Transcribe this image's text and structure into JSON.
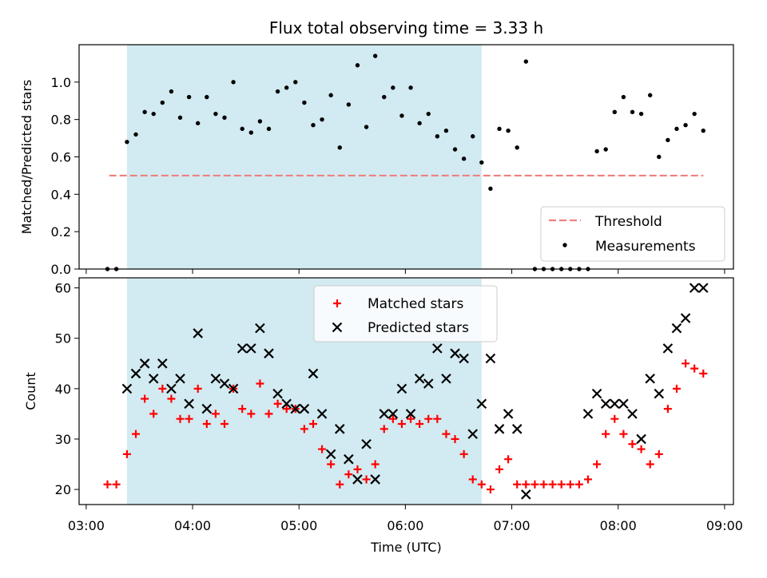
{
  "chart_data": [
    {
      "type": "scatter",
      "title": "Flux total observing time = 3.33 h",
      "xlabel": "",
      "ylabel": "Matched/Predicted stars",
      "xlim": [
        "02:56",
        "09:05"
      ],
      "ylim": [
        0,
        1.2
      ],
      "yticks": [
        "0.0",
        "0.2",
        "0.4",
        "0.6",
        "0.8",
        "1.0"
      ],
      "shaded_interval": [
        "03:23",
        "06:43"
      ],
      "shade_color": "#add8e6",
      "grid": false,
      "legend": "lower-right",
      "legend_entries": [
        "Threshold",
        "Measurements"
      ],
      "threshold": {
        "name": "Threshold",
        "y": 0.5,
        "x_start": "03:13",
        "x_end": "08:48",
        "color": "#f08080"
      },
      "series": [
        {
          "name": "Measurements",
          "color": "#000000",
          "x": [
            "03:12",
            "03:17",
            "03:23",
            "03:28",
            "03:33",
            "03:38",
            "03:43",
            "03:48",
            "03:53",
            "03:58",
            "04:03",
            "04:08",
            "04:13",
            "04:18",
            "04:23",
            "04:28",
            "04:33",
            "04:38",
            "04:43",
            "04:48",
            "04:53",
            "04:58",
            "05:03",
            "05:08",
            "05:13",
            "05:18",
            "05:23",
            "05:28",
            "05:33",
            "05:38",
            "05:43",
            "05:48",
            "05:53",
            "05:58",
            "06:03",
            "06:08",
            "06:13",
            "06:18",
            "06:23",
            "06:28",
            "06:33",
            "06:38",
            "06:43",
            "06:48",
            "06:53",
            "06:58",
            "07:03",
            "07:08",
            "07:13",
            "07:18",
            "07:23",
            "07:28",
            "07:33",
            "07:38",
            "07:43",
            "07:48",
            "07:53",
            "07:58",
            "08:03",
            "08:08",
            "08:13",
            "08:18",
            "08:23",
            "08:28",
            "08:33",
            "08:38",
            "08:43",
            "08:48"
          ],
          "y": [
            0.0,
            0.0,
            0.68,
            0.72,
            0.84,
            0.83,
            0.89,
            0.95,
            0.81,
            0.92,
            0.78,
            0.92,
            0.83,
            0.81,
            1.0,
            0.75,
            0.73,
            0.79,
            0.75,
            0.95,
            0.97,
            1.0,
            0.89,
            0.77,
            0.8,
            0.93,
            0.65,
            0.88,
            1.09,
            0.76,
            1.14,
            0.92,
            0.97,
            0.82,
            0.97,
            0.78,
            0.83,
            0.71,
            0.74,
            0.64,
            0.59,
            0.71,
            0.57,
            0.43,
            0.75,
            0.74,
            0.65,
            1.11,
            0.0,
            0.0,
            0.0,
            0.0,
            0.0,
            0.0,
            0.0,
            0.63,
            0.64,
            0.84,
            0.92,
            0.84,
            0.83,
            0.93,
            0.6,
            0.69,
            0.75,
            0.77,
            0.83,
            0.74
          ]
        }
      ]
    },
    {
      "type": "scatter",
      "title": "",
      "xlabel": "Time (UTC)",
      "ylabel": "Count",
      "xlim": [
        "02:56",
        "09:05"
      ],
      "ylim": [
        17,
        62
      ],
      "xticks": [
        "03:00",
        "04:00",
        "05:00",
        "06:00",
        "07:00",
        "08:00",
        "09:00"
      ],
      "yticks": [
        "20",
        "30",
        "40",
        "50",
        "60"
      ],
      "shaded_interval": [
        "03:23",
        "06:43"
      ],
      "shade_color": "#add8e6",
      "grid": false,
      "legend": "top-center",
      "legend_entries": [
        "Matched stars",
        "Predicted stars"
      ],
      "series": [
        {
          "name": "Matched stars",
          "color": "#ff0000",
          "marker": "+",
          "x": [
            "03:12",
            "03:17",
            "03:23",
            "03:28",
            "03:33",
            "03:38",
            "03:43",
            "03:48",
            "03:53",
            "03:58",
            "04:03",
            "04:08",
            "04:13",
            "04:18",
            "04:23",
            "04:28",
            "04:33",
            "04:38",
            "04:43",
            "04:48",
            "04:53",
            "04:58",
            "05:03",
            "05:08",
            "05:13",
            "05:18",
            "05:23",
            "05:28",
            "05:33",
            "05:38",
            "05:43",
            "05:48",
            "05:53",
            "05:58",
            "06:03",
            "06:08",
            "06:13",
            "06:18",
            "06:23",
            "06:28",
            "06:33",
            "06:38",
            "06:43",
            "06:48",
            "06:53",
            "06:58",
            "07:03",
            "07:08",
            "07:13",
            "07:18",
            "07:23",
            "07:28",
            "07:33",
            "07:38",
            "07:43",
            "07:48",
            "07:53",
            "07:58",
            "08:03",
            "08:08",
            "08:13",
            "08:18",
            "08:23",
            "08:28",
            "08:33",
            "08:38",
            "08:43",
            "08:48"
          ],
          "y": [
            21,
            21,
            27,
            31,
            38,
            35,
            40,
            38,
            34,
            34,
            40,
            33,
            35,
            33,
            40,
            36,
            35,
            41,
            35,
            37,
            36,
            36,
            32,
            33,
            28,
            25,
            21,
            23,
            24,
            22,
            25,
            32,
            34,
            33,
            34,
            33,
            34,
            34,
            31,
            30,
            27,
            22,
            21,
            20,
            24,
            26,
            21,
            21,
            21,
            21,
            21,
            21,
            21,
            21,
            22,
            25,
            31,
            34,
            31,
            29,
            28,
            25,
            27,
            36,
            40,
            45,
            44,
            43
          ]
        },
        {
          "name": "Predicted stars",
          "color": "#000000",
          "marker": "x",
          "x": [
            "03:23",
            "03:28",
            "03:33",
            "03:38",
            "03:43",
            "03:48",
            "03:53",
            "03:58",
            "04:03",
            "04:08",
            "04:13",
            "04:18",
            "04:23",
            "04:28",
            "04:33",
            "04:38",
            "04:43",
            "04:48",
            "04:53",
            "04:58",
            "05:03",
            "05:08",
            "05:13",
            "05:18",
            "05:23",
            "05:28",
            "05:33",
            "05:38",
            "05:43",
            "05:48",
            "05:53",
            "05:58",
            "06:03",
            "06:08",
            "06:13",
            "06:18",
            "06:23",
            "06:28",
            "06:33",
            "06:38",
            "06:43",
            "06:48",
            "06:53",
            "06:58",
            "07:03",
            "07:08",
            "07:43",
            "07:48",
            "07:53",
            "07:58",
            "08:03",
            "08:08",
            "08:13",
            "08:18",
            "08:23",
            "08:28",
            "08:33",
            "08:38",
            "08:43",
            "08:48"
          ],
          "y": [
            40,
            43,
            45,
            42,
            45,
            40,
            42,
            37,
            51,
            36,
            42,
            41,
            40,
            48,
            48,
            52,
            47,
            39,
            37,
            36,
            36,
            43,
            35,
            27,
            32,
            26,
            22,
            29,
            22,
            35,
            35,
            40,
            35,
            42,
            41,
            48,
            42,
            47,
            46,
            31,
            37,
            46,
            32,
            35,
            32,
            19,
            35,
            39,
            37,
            37,
            37,
            35,
            30,
            42,
            39,
            48,
            52,
            54,
            60,
            60
          ]
        }
      ]
    }
  ]
}
